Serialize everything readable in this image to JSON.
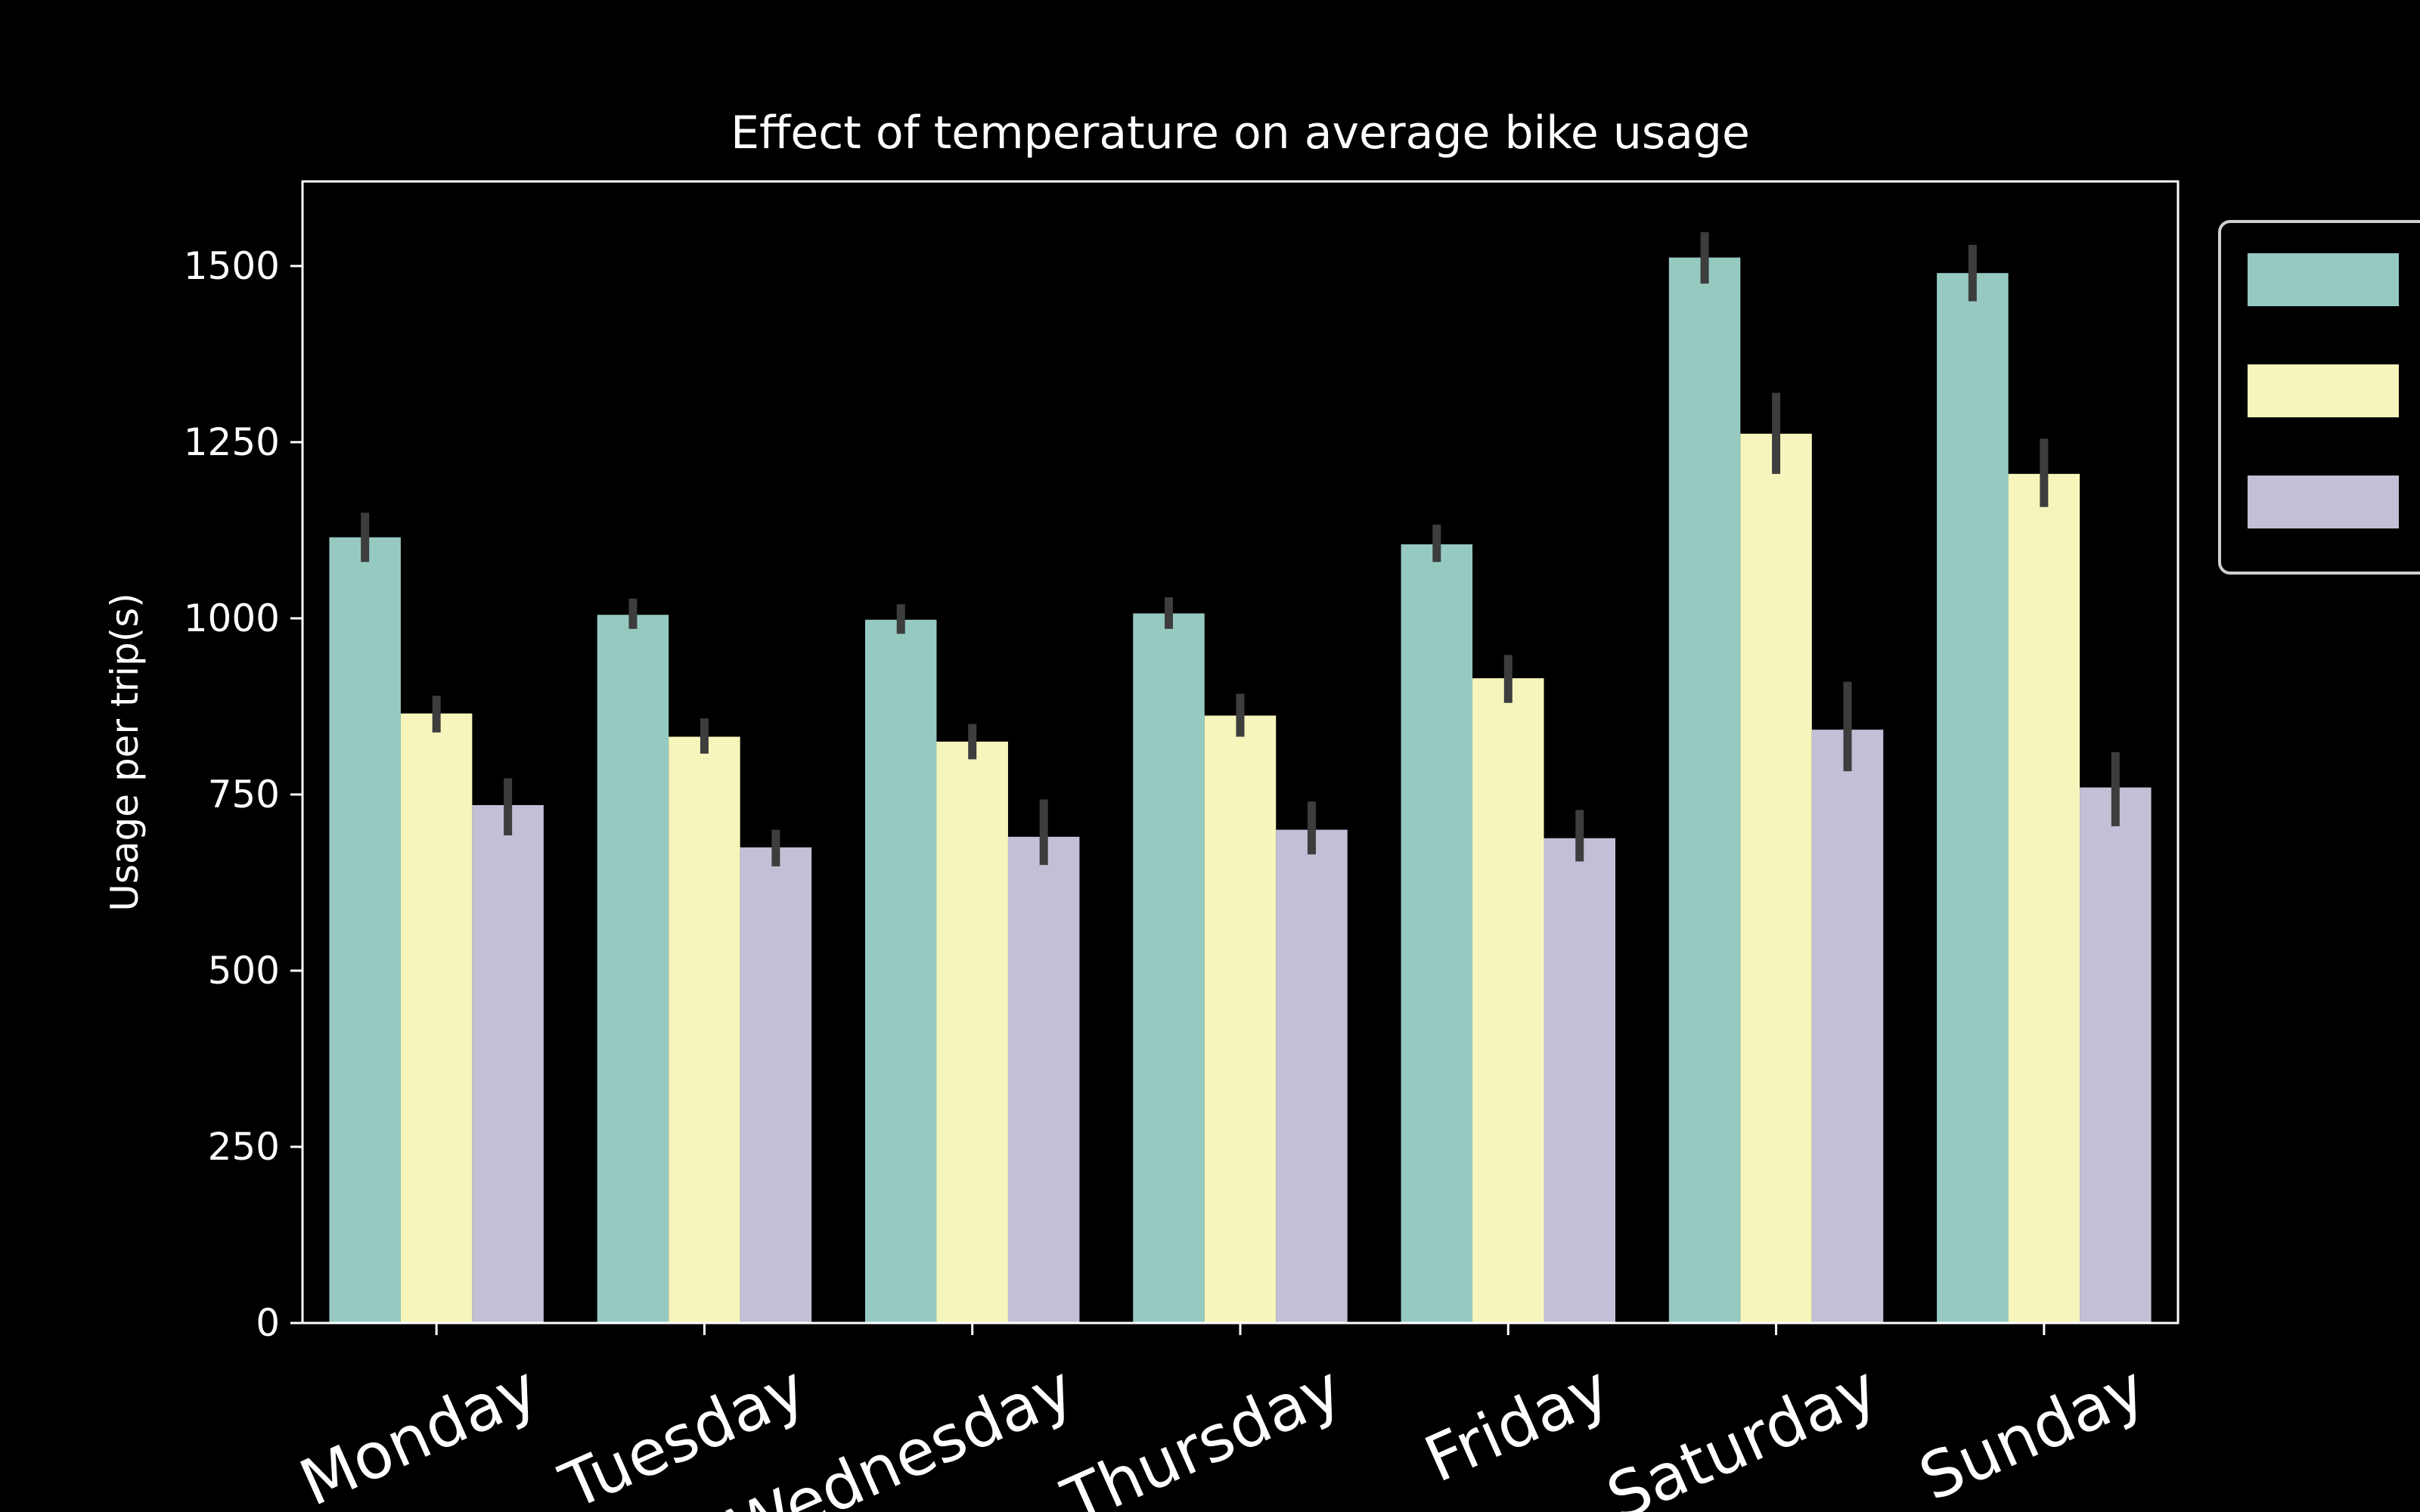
{
  "chart_data": {
    "type": "bar",
    "title": "Effect of temperature on average bike usage",
    "xlabel": "",
    "ylabel": "Usage per trip(s)",
    "ylim": [
      0,
      1620
    ],
    "yticks": [
      0,
      250,
      500,
      750,
      1000,
      1250,
      1500
    ],
    "categories": [
      "Monday",
      "Tuesday",
      "Wednesday",
      "Thursday",
      "Friday",
      "Saturday",
      "Sunday"
    ],
    "series": [
      {
        "color": "#96cac1",
        "values": [
          1115,
          1005,
          998,
          1007,
          1105,
          1512,
          1490
        ],
        "err": [
          [
            1080,
            1150
          ],
          [
            985,
            1028
          ],
          [
            978,
            1020
          ],
          [
            985,
            1030
          ],
          [
            1080,
            1133
          ],
          [
            1475,
            1548
          ],
          [
            1450,
            1530
          ]
        ]
      },
      {
        "color": "#f6f6bc",
        "values": [
          865,
          832,
          825,
          862,
          915,
          1262,
          1205
        ],
        "err": [
          [
            838,
            890
          ],
          [
            808,
            858
          ],
          [
            800,
            850
          ],
          [
            832,
            893
          ],
          [
            880,
            948
          ],
          [
            1205,
            1320
          ],
          [
            1158,
            1255
          ]
        ]
      },
      {
        "color": "#c2c0d6",
        "values": [
          735,
          675,
          690,
          700,
          688,
          842,
          760
        ],
        "err": [
          [
            692,
            773
          ],
          [
            648,
            700
          ],
          [
            650,
            743
          ],
          [
            665,
            740
          ],
          [
            655,
            728
          ],
          [
            783,
            910
          ],
          [
            705,
            810
          ]
        ]
      }
    ],
    "error_bar_color": "#3d3d3d",
    "legend": {
      "placement": "right",
      "entries": [
        "",
        "",
        ""
      ]
    },
    "grid": false
  }
}
